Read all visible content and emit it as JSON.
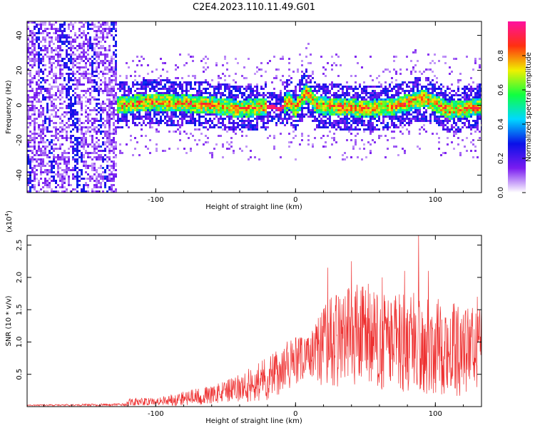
{
  "title": "C2E4.2023.110.11.49.G01",
  "chart_data": [
    {
      "type": "heatmap",
      "xlabel": "Height of straight line (km)",
      "ylabel": "Frequency (Hz)",
      "xlim": [
        -192,
        133
      ],
      "ylim": [
        -50,
        48
      ],
      "xticks": [
        -100,
        0,
        100
      ],
      "xtick_labels": [
        "-100",
        "0",
        "100"
      ],
      "yticks": [
        -40,
        -20,
        0,
        20,
        40
      ],
      "ytick_labels": [
        "-40",
        "-20",
        "0",
        "20",
        "40"
      ],
      "colorbar": {
        "label": "Normalized spectral amplitude",
        "range": [
          0,
          1
        ],
        "ticks": [
          0.0,
          0.2,
          0.4,
          0.6,
          0.8
        ],
        "tick_labels": [
          "0.0",
          "0.2",
          "0.4",
          "0.6",
          "0.8"
        ],
        "colors": [
          "#ffffff",
          "#7a1cf0",
          "#0a10e8",
          "#00d8ff",
          "#10ff40",
          "#f0f000",
          "#ff3010",
          "#ff10a0"
        ]
      },
      "ridge": [
        {
          "x": -128,
          "y": 0
        },
        {
          "x": -100,
          "y": 2
        },
        {
          "x": -80,
          "y": 1
        },
        {
          "x": -60,
          "y": 0
        },
        {
          "x": -40,
          "y": -2
        },
        {
          "x": -20,
          "y": -1
        },
        {
          "x": -10,
          "y": -2
        },
        {
          "x": -5,
          "y": 3
        },
        {
          "x": 0,
          "y": -2
        },
        {
          "x": 8,
          "y": 8
        },
        {
          "x": 15,
          "y": 0
        },
        {
          "x": 30,
          "y": -1
        },
        {
          "x": 50,
          "y": -2
        },
        {
          "x": 70,
          "y": -1
        },
        {
          "x": 92,
          "y": 4
        },
        {
          "x": 110,
          "y": -3
        },
        {
          "x": 133,
          "y": -1
        }
      ]
    },
    {
      "type": "line",
      "xlabel": "Height of straight line (km)",
      "ylabel": "SNR (10 * v/v)",
      "yscale_label": "(x10",
      "yscale_exp": "4",
      "xlim": [
        -192,
        133
      ],
      "ylim": [
        0,
        2.65
      ],
      "xticks": [
        -100,
        0,
        100
      ],
      "xtick_labels": [
        "-100",
        "0",
        "100"
      ],
      "yticks": [
        0.5,
        1.0,
        1.5,
        2.0,
        2.5
      ],
      "ytick_labels": [
        "0.5",
        "1.0",
        "1.5",
        "2.0",
        "2.5"
      ],
      "line_color": "#ee3030",
      "envelope": [
        {
          "x": -192,
          "mean": 0.02,
          "amp": 0.01
        },
        {
          "x": -122,
          "mean": 0.03,
          "amp": 0.02
        },
        {
          "x": -118,
          "mean": 0.07,
          "amp": 0.07
        },
        {
          "x": -100,
          "mean": 0.08,
          "amp": 0.05
        },
        {
          "x": -80,
          "mean": 0.13,
          "amp": 0.12
        },
        {
          "x": -60,
          "mean": 0.18,
          "amp": 0.14
        },
        {
          "x": -40,
          "mean": 0.28,
          "amp": 0.22
        },
        {
          "x": -20,
          "mean": 0.45,
          "amp": 0.35
        },
        {
          "x": 0,
          "mean": 0.7,
          "amp": 0.4
        },
        {
          "x": 10,
          "mean": 0.78,
          "amp": 0.3
        },
        {
          "x": 20,
          "mean": 0.95,
          "amp": 0.65
        },
        {
          "x": 40,
          "mean": 1.15,
          "amp": 0.85
        },
        {
          "x": 60,
          "mean": 1.0,
          "amp": 0.75
        },
        {
          "x": 80,
          "mean": 1.0,
          "amp": 0.8
        },
        {
          "x": 100,
          "mean": 0.95,
          "amp": 0.75
        },
        {
          "x": 120,
          "mean": 0.85,
          "amp": 0.7
        },
        {
          "x": 133,
          "mean": 0.95,
          "amp": 0.6
        }
      ],
      "peaks": [
        {
          "x": 23,
          "y": 2.15
        },
        {
          "x": 40,
          "y": 2.25
        },
        {
          "x": 52,
          "y": 1.9
        },
        {
          "x": 62,
          "y": 2.0
        },
        {
          "x": 78,
          "y": 2.1
        },
        {
          "x": 88,
          "y": 2.65
        },
        {
          "x": 95,
          "y": 2.1
        },
        {
          "x": 130,
          "y": 1.7
        }
      ]
    }
  ]
}
